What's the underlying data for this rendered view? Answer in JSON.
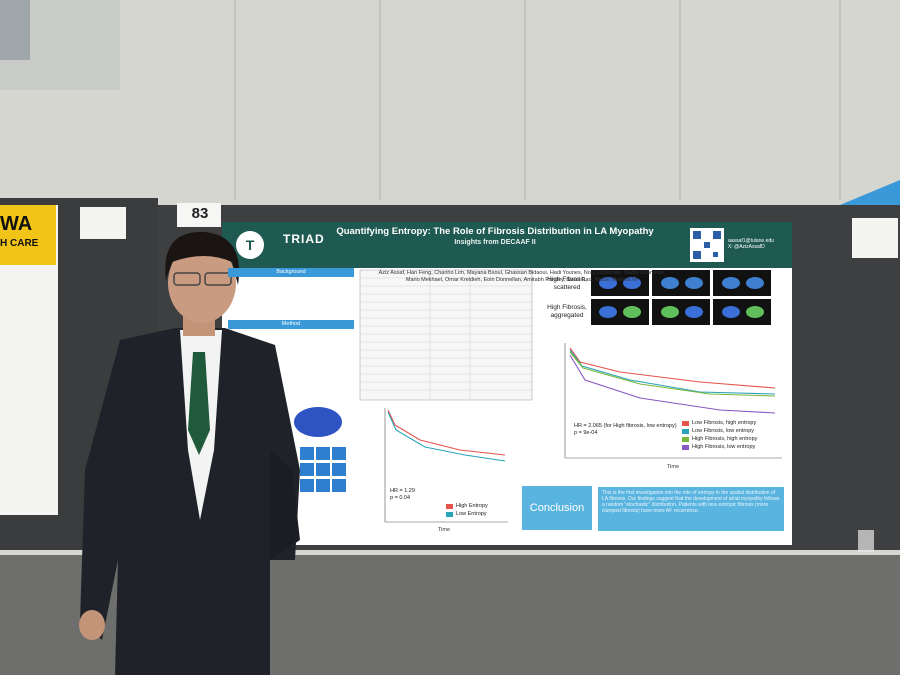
{
  "booth_number": "83",
  "left_poster": {
    "banner": "WA",
    "banner_line2": "H CARE"
  },
  "poster": {
    "logo": "TRIAD",
    "title": "Quantifying Entropy: The Role of Fibrosis Distribution in LA Myopathy",
    "subtitle": "Insights from DECAAF II",
    "contact": [
      "aassaf1@tulane.edu",
      "X: @AzizAssafD"
    ],
    "authors": "Aziz Assaf, Han Feng, Chanho Lim, Mayana Bsoul, Ghassan Bidaoui, Hadi Younes, Nour Chouman, Nadia Chamoun, Mario Mekhael, Omar Kreidieh, Eoin Donnellan, Amitabh Pandey, Swati Rao, Nassir Marrouche",
    "sections": [
      "Background",
      "Method"
    ],
    "image_labels": [
      "High Fibrosis, scattered",
      "High Fibrosis, aggregated"
    ],
    "km_left": {
      "hr": "HR = 1.29",
      "p": "p = 0.04",
      "x_label": "Time",
      "legend": [
        {
          "name": "High Entropy",
          "color": "#e5534b"
        },
        {
          "name": "Low Entropy",
          "color": "#2ba3b8"
        }
      ]
    },
    "km_right": {
      "hr": "HR = 2.065 (for High fibrosis, low entropy)",
      "p": "p = 9e-04",
      "x_label": "Time",
      "legend": [
        {
          "name": "Low Fibrosis, high entropy",
          "color": "#e5534b"
        },
        {
          "name": "Low Fibrosis, low entropy",
          "color": "#2ba3b8"
        },
        {
          "name": "High Fibrosis, high entropy",
          "color": "#7ab83a"
        },
        {
          "name": "High Fibrosis, low entropy",
          "color": "#8a58c2"
        }
      ]
    },
    "conclusion": {
      "heading": "Conclusion",
      "text": "This is the first investigation into the role of entropy in the spatial distribution of LA fibrosis. Our findings suggest that the development of atrial myopathy follows a random \"stochastic\" distribution. Patients with less entropic fibrosis (more clumped fibrosis) have more AF recurrence."
    }
  }
}
